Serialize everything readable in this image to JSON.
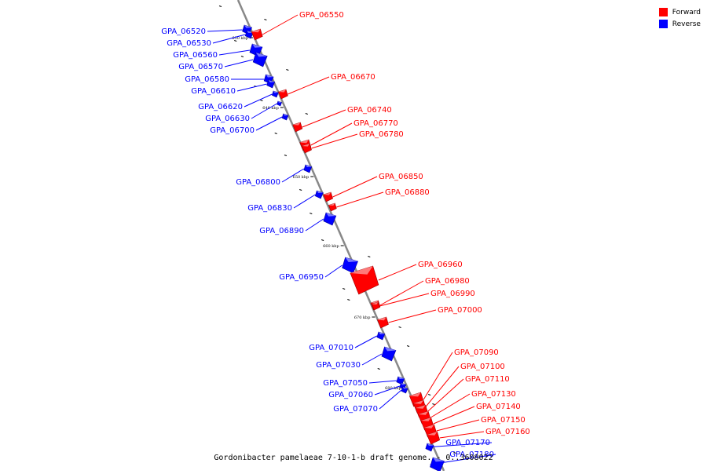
{
  "legend": {
    "forward_label": "Forward",
    "reverse_label": "Reverse",
    "forward_color": "#ff0000",
    "reverse_color": "#0000ff"
  },
  "caption": "Gordonibacter pamelaeae 7-10-1-b draft genome. - 0..3608022",
  "track": {
    "axis_color": "#888888",
    "ticks": [
      "630 kbp",
      "640 kbp",
      "650 kbp",
      "660 kbp",
      "670 kbp",
      "680 kbp"
    ]
  },
  "genes": [
    {
      "name": "GPA_06520",
      "strand": "reverse"
    },
    {
      "name": "GPA_06530",
      "strand": "reverse"
    },
    {
      "name": "GPA_06550",
      "strand": "forward"
    },
    {
      "name": "GPA_06560",
      "strand": "reverse"
    },
    {
      "name": "GPA_06570",
      "strand": "reverse"
    },
    {
      "name": "GPA_06580",
      "strand": "reverse"
    },
    {
      "name": "GPA_06610",
      "strand": "reverse"
    },
    {
      "name": "GPA_06620",
      "strand": "reverse"
    },
    {
      "name": "GPA_06630",
      "strand": "reverse"
    },
    {
      "name": "GPA_06670",
      "strand": "forward"
    },
    {
      "name": "GPA_06700",
      "strand": "reverse"
    },
    {
      "name": "GPA_06740",
      "strand": "forward"
    },
    {
      "name": "GPA_06770",
      "strand": "forward"
    },
    {
      "name": "GPA_06780",
      "strand": "forward"
    },
    {
      "name": "GPA_06800",
      "strand": "reverse"
    },
    {
      "name": "GPA_06830",
      "strand": "reverse"
    },
    {
      "name": "GPA_06850",
      "strand": "forward"
    },
    {
      "name": "GPA_06880",
      "strand": "forward"
    },
    {
      "name": "GPA_06890",
      "strand": "reverse"
    },
    {
      "name": "GPA_06950",
      "strand": "reverse"
    },
    {
      "name": "GPA_06960",
      "strand": "forward"
    },
    {
      "name": "GPA_06980",
      "strand": "forward"
    },
    {
      "name": "GPA_06990",
      "strand": "forward"
    },
    {
      "name": "GPA_07000",
      "strand": "forward"
    },
    {
      "name": "GPA_07010",
      "strand": "reverse"
    },
    {
      "name": "GPA_07030",
      "strand": "reverse"
    },
    {
      "name": "GPA_07050",
      "strand": "reverse"
    },
    {
      "name": "GPA_07060",
      "strand": "reverse"
    },
    {
      "name": "GPA_07070",
      "strand": "reverse"
    },
    {
      "name": "GPA_07090",
      "strand": "forward"
    },
    {
      "name": "GPA_07100",
      "strand": "forward"
    },
    {
      "name": "GPA_07110",
      "strand": "forward"
    },
    {
      "name": "GPA_07130",
      "strand": "forward"
    },
    {
      "name": "GPA_07140",
      "strand": "forward"
    },
    {
      "name": "GPA_07150",
      "strand": "forward"
    },
    {
      "name": "GPA_07160",
      "strand": "forward"
    },
    {
      "name": "GPA_07170",
      "strand": "reverse"
    },
    {
      "name": "GPA_07180",
      "strand": "reverse"
    }
  ]
}
